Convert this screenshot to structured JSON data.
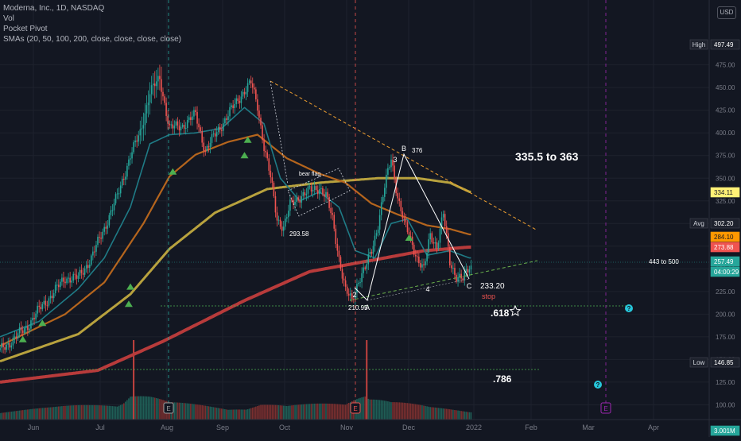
{
  "legend": {
    "title": "Moderna, Inc., 1D, NASDAQ",
    "vol": "Vol",
    "pocket_pivot": "Pocket Pivot",
    "smas": "SMAs (20, 50, 100, 200, close, close, close, close)"
  },
  "currency": "USD",
  "colors": {
    "bg": "#131722",
    "up": "#26a69a",
    "down": "#ef5350",
    "sma20": "#1f7b86",
    "sma50": "#b5651d",
    "sma100": "#b8a23e",
    "sma200": "#b83b3b",
    "pivot": "#4caf50",
    "trend_resistance": "#f0a030",
    "trend_support": "#6ab04c",
    "pattern": "#ffffff",
    "event": "#9c27b0",
    "tag_help": "#26c6da"
  },
  "chart_data": {
    "type": "candlestick",
    "x_ticks": [
      "Jun",
      "Jul",
      "Aug",
      "Sep",
      "Oct",
      "Nov",
      "Dec",
      "2022",
      "Feb",
      "Mar",
      "Apr"
    ],
    "y_ticks": [
      "475.00",
      "450.00",
      "425.00",
      "400.00",
      "375.00",
      "350.00",
      "325.00",
      "300.00",
      "275.00",
      "250.00",
      "225.00",
      "200.00",
      "175.00",
      "150.00",
      "125.00",
      "100.00"
    ],
    "ylim": [
      95,
      510
    ],
    "price_keypoints": [
      [
        0,
        160
      ],
      [
        8,
        172
      ],
      [
        16,
        185
      ],
      [
        24,
        205
      ],
      [
        32,
        222
      ],
      [
        40,
        240
      ],
      [
        48,
        240
      ],
      [
        56,
        262
      ],
      [
        64,
        295
      ],
      [
        72,
        330
      ],
      [
        80,
        375
      ],
      [
        86,
        400
      ],
      [
        92,
        445
      ],
      [
        98,
        460
      ],
      [
        104,
        405
      ],
      [
        112,
        408
      ],
      [
        120,
        420
      ],
      [
        126,
        380
      ],
      [
        132,
        398
      ],
      [
        140,
        420
      ],
      [
        148,
        442
      ],
      [
        154,
        455
      ],
      [
        158,
        430
      ],
      [
        162,
        385
      ],
      [
        166,
        350
      ],
      [
        170,
        305
      ],
      [
        174,
        296
      ],
      [
        178,
        320
      ],
      [
        184,
        330
      ],
      [
        190,
        336
      ],
      [
        196,
        340
      ],
      [
        200,
        330
      ],
      [
        204,
        305
      ],
      [
        208,
        262
      ],
      [
        212,
        225
      ],
      [
        216,
        215
      ],
      [
        220,
        238
      ],
      [
        224,
        250
      ],
      [
        228,
        270
      ],
      [
        232,
        300
      ],
      [
        236,
        340
      ],
      [
        240,
        372
      ],
      [
        244,
        330
      ],
      [
        248,
        300
      ],
      [
        252,
        282
      ],
      [
        256,
        262
      ],
      [
        260,
        248
      ],
      [
        264,
        288
      ],
      [
        268,
        275
      ],
      [
        272,
        310
      ],
      [
        276,
        258
      ],
      [
        280,
        242
      ],
      [
        284,
        238
      ],
      [
        288,
        252
      ]
    ],
    "sma20_keypoints": [
      [
        0,
        175
      ],
      [
        24,
        192
      ],
      [
        48,
        228
      ],
      [
        64,
        262
      ],
      [
        80,
        318
      ],
      [
        92,
        388
      ],
      [
        104,
        398
      ],
      [
        120,
        400
      ],
      [
        136,
        405
      ],
      [
        150,
        428
      ],
      [
        162,
        410
      ],
      [
        172,
        350
      ],
      [
        184,
        325
      ],
      [
        196,
        335
      ],
      [
        208,
        318
      ],
      [
        218,
        270
      ],
      [
        230,
        262
      ],
      [
        240,
        300
      ],
      [
        250,
        305
      ],
      [
        262,
        265
      ],
      [
        276,
        270
      ],
      [
        288,
        262
      ]
    ],
    "sma50_keypoints": [
      [
        0,
        165
      ],
      [
        40,
        200
      ],
      [
        64,
        235
      ],
      [
        88,
        300
      ],
      [
        104,
        352
      ],
      [
        120,
        376
      ],
      [
        140,
        390
      ],
      [
        158,
        398
      ],
      [
        176,
        372
      ],
      [
        196,
        355
      ],
      [
        212,
        345
      ],
      [
        228,
        322
      ],
      [
        244,
        310
      ],
      [
        262,
        298
      ],
      [
        276,
        294
      ],
      [
        288,
        288
      ]
    ],
    "sma100_keypoints": [
      [
        0,
        148
      ],
      [
        48,
        178
      ],
      [
        80,
        222
      ],
      [
        104,
        272
      ],
      [
        132,
        312
      ],
      [
        164,
        338
      ],
      [
        196,
        345
      ],
      [
        232,
        350
      ],
      [
        256,
        350
      ],
      [
        276,
        345
      ],
      [
        288,
        335
      ]
    ],
    "sma200_keypoints": [
      [
        0,
        125
      ],
      [
        60,
        138
      ],
      [
        100,
        170
      ],
      [
        150,
        215
      ],
      [
        190,
        247
      ],
      [
        230,
        260
      ],
      [
        260,
        270
      ],
      [
        288,
        274
      ]
    ],
    "volume_keypoints": [
      [
        0,
        0.3
      ],
      [
        32,
        0.35
      ],
      [
        56,
        0.45
      ],
      [
        72,
        0.55
      ],
      [
        80,
        0.95
      ],
      [
        92,
        0.75
      ],
      [
        104,
        0.5
      ],
      [
        140,
        0.35
      ],
      [
        160,
        0.55
      ],
      [
        176,
        0.4
      ],
      [
        212,
        0.5
      ],
      [
        224,
        1.0
      ],
      [
        240,
        0.6
      ],
      [
        264,
        0.35
      ],
      [
        288,
        0.25
      ]
    ],
    "volume_spikes": [
      [
        82,
        1.0
      ],
      [
        225,
        1.0
      ]
    ],
    "pocket_pivots": [
      [
        14,
        190
      ],
      [
        26,
        208
      ],
      [
        79,
        229
      ],
      [
        80,
        248
      ],
      [
        106,
        375
      ],
      [
        150,
        393
      ],
      [
        152,
        410
      ],
      [
        251,
        302
      ]
    ],
    "trendlines": {
      "resistance": [
        [
          340,
          102
        ],
        [
          676,
          290
        ]
      ],
      "support": [
        [
          440,
          378
        ],
        [
          676,
          328
        ]
      ],
      "fib_618": [
        [
          202,
          385
        ],
        [
          790,
          385
        ]
      ],
      "fib_786": [
        [
          0,
          465
        ],
        [
          680,
          465
        ]
      ]
    },
    "pattern_points": [
      {
        "label": "2",
        "x": 446,
        "y": 362,
        "price": ""
      },
      {
        "label": "A",
        "x": 462,
        "y": 378,
        "price": "210.95"
      },
      {
        "label": "3",
        "x": 497,
        "y": 208,
        "price": ""
      },
      {
        "label": "B",
        "x": 508,
        "y": 194,
        "price": "376"
      },
      {
        "label": "4",
        "x": 538,
        "y": 355,
        "price": ""
      },
      {
        "label": "C",
        "x": 590,
        "y": 351,
        "price": "233.20"
      }
    ],
    "annotations": {
      "target": "335.5 to 363",
      "target2": "443 to 500",
      "bear_flag": "bear flag",
      "bear_low": "293.58",
      "fib_618": ".618",
      "fib_786": ".786",
      "stop": "stop"
    },
    "price_tags": [
      {
        "label": "High",
        "value": "497.49",
        "y": 56,
        "color": "#1e222d",
        "text": "#ffffff"
      },
      {
        "label": "",
        "value": "334.11",
        "y": 242,
        "color": "#fff176",
        "text": "#131722"
      },
      {
        "label": "Avg",
        "value": "302.20",
        "y": 281,
        "color": "#1e222d",
        "text": "#ffffff"
      },
      {
        "label": "",
        "value": "284.10",
        "y": 298,
        "color": "#ff9800",
        "text": "#131722"
      },
      {
        "label": "",
        "value": "273.88",
        "y": 311,
        "color": "#ef5350",
        "text": "#ffffff"
      },
      {
        "label": "",
        "value": "257.49",
        "y": 329,
        "color": "#26a69a",
        "text": "#ffffff"
      },
      {
        "label": "",
        "value": "04:00:29",
        "y": 342,
        "color": "#26a69a",
        "text": "#ffffff"
      },
      {
        "label": "Low",
        "value": "146.85",
        "y": 456,
        "color": "#1e222d",
        "text": "#ffffff"
      },
      {
        "label": "",
        "value": "3.001M",
        "y": 542,
        "color": "#26a69a",
        "text": "#ffffff"
      }
    ],
    "event_markers": [
      {
        "label": "E",
        "x": 212,
        "color": "#9e9e9e"
      },
      {
        "label": "E",
        "x": 447,
        "color": "#ef5350"
      },
      {
        "label": "E",
        "x": 762,
        "color": "#9c27b0"
      }
    ],
    "help_markers": [
      {
        "label": "?",
        "x": 791,
        "y": 388
      },
      {
        "label": "?",
        "x": 752,
        "y": 484
      }
    ]
  }
}
